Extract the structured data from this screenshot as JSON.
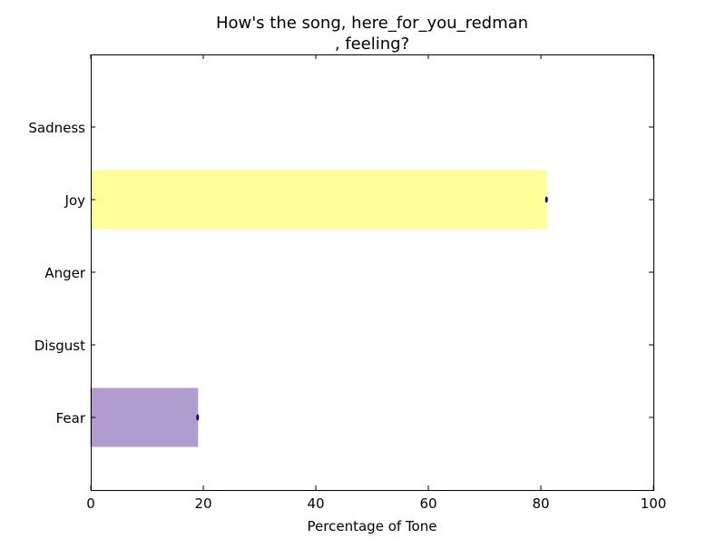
{
  "chart_data": {
    "type": "bar",
    "orientation": "horizontal",
    "title_lines": [
      "How's the song, here_for_you_redman",
      ", feeling?"
    ],
    "xlabel": "Percentage of Tone",
    "ylabel": "",
    "xlim": [
      0,
      100
    ],
    "xticks": [
      "0",
      "20",
      "40",
      "60",
      "80",
      "100"
    ],
    "categories": [
      "Sadness",
      "Joy",
      "Anger",
      "Disgust",
      "Fear"
    ],
    "values": [
      0,
      81,
      0,
      0,
      19
    ],
    "colors": [
      "#7fbf7f",
      "#ffff99",
      "#ff7f7f",
      "#7fff7f",
      "#b19cd0"
    ],
    "error_color": "#00008b",
    "grid": false,
    "legend": false
  }
}
